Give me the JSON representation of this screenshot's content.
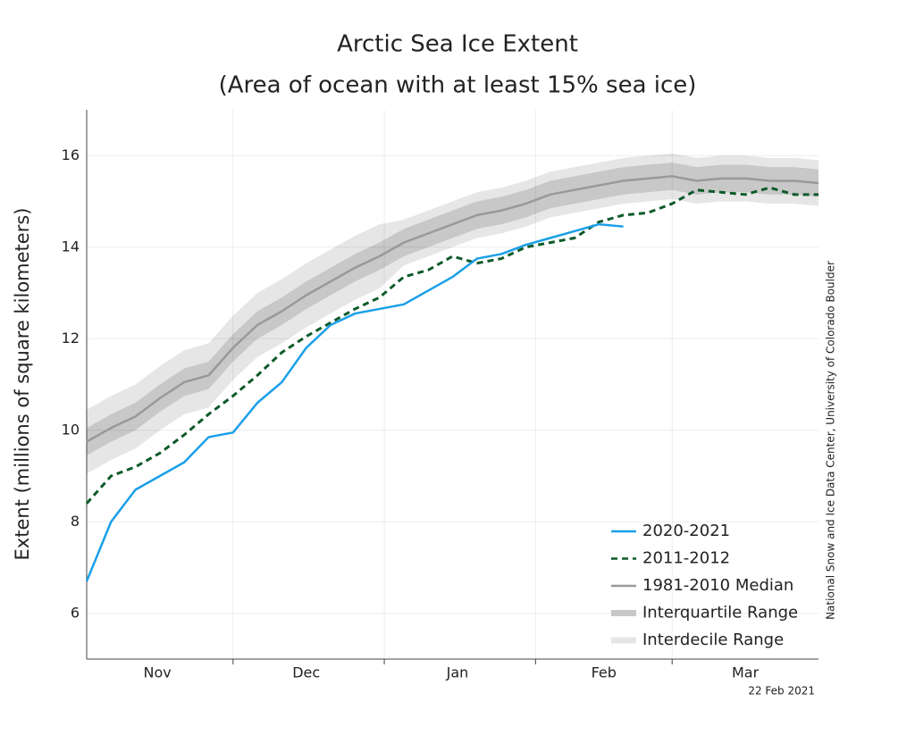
{
  "chart_data": {
    "type": "line",
    "title": [
      "Arctic Sea Ice Extent",
      "(Area of ocean with at least 15% sea ice)"
    ],
    "y_label": "Extent (millions of square kilometers)",
    "source": "National Snow and Ice Data Center, University of Colorado Boulder",
    "date": "22 Feb 2021",
    "x": [
      0,
      5,
      10,
      15,
      20,
      25,
      30,
      35,
      40,
      45,
      50,
      55,
      60,
      65,
      70,
      75,
      80,
      85,
      90,
      95,
      100,
      105,
      110,
      115,
      120,
      125,
      130,
      135,
      140,
      145,
      150
    ],
    "xlim": [
      0,
      150
    ],
    "xticks": [
      {
        "value": 14.5,
        "label": "Nov"
      },
      {
        "value": 45,
        "label": "Dec"
      },
      {
        "value": 76,
        "label": "Jan"
      },
      {
        "value": 106,
        "label": "Feb"
      },
      {
        "value": 135,
        "label": "Mar"
      }
    ],
    "month_boundaries": [
      30,
      61,
      92,
      120
    ],
    "ylim": [
      5,
      17
    ],
    "yticks": [
      6,
      8,
      10,
      12,
      14,
      16
    ],
    "grid": true,
    "legend": "lower right",
    "bands": [
      {
        "name": "Interdecile Range",
        "color": "#e6e6e6",
        "lower": [
          9.05,
          9.35,
          9.6,
          10.0,
          10.35,
          10.5,
          11.1,
          11.6,
          11.9,
          12.25,
          12.55,
          12.85,
          13.1,
          13.6,
          13.8,
          14.0,
          14.2,
          14.3,
          14.45,
          14.65,
          14.75,
          14.85,
          14.95,
          15.0,
          15.05,
          14.95,
          15.0,
          15.0,
          14.95,
          14.95,
          14.9
        ],
        "upper": [
          10.45,
          10.75,
          11.0,
          11.4,
          11.75,
          11.9,
          12.5,
          13.0,
          13.3,
          13.65,
          13.95,
          14.25,
          14.5,
          14.6,
          14.8,
          15.0,
          15.2,
          15.3,
          15.45,
          15.65,
          15.75,
          15.85,
          15.95,
          16.0,
          16.05,
          15.95,
          16.0,
          16.0,
          15.95,
          15.95,
          15.9
        ]
      },
      {
        "name": "Interquartile Range",
        "color": "#c8c8c8",
        "lower": [
          9.45,
          9.75,
          10.0,
          10.4,
          10.75,
          10.9,
          11.5,
          12.0,
          12.3,
          12.65,
          12.95,
          13.25,
          13.5,
          13.8,
          14.0,
          14.2,
          14.4,
          14.5,
          14.65,
          14.85,
          14.95,
          15.05,
          15.15,
          15.2,
          15.25,
          15.15,
          15.2,
          15.2,
          15.15,
          15.15,
          15.1
        ],
        "upper": [
          10.05,
          10.35,
          10.6,
          11.0,
          11.35,
          11.5,
          12.1,
          12.6,
          12.9,
          13.25,
          13.55,
          13.85,
          14.1,
          14.4,
          14.6,
          14.8,
          15.0,
          15.1,
          15.25,
          15.45,
          15.55,
          15.65,
          15.75,
          15.8,
          15.85,
          15.75,
          15.8,
          15.8,
          15.75,
          15.75,
          15.7
        ]
      }
    ],
    "series": [
      {
        "name": "2020-2021",
        "color": "#1a9fe8",
        "dash": false,
        "values": [
          6.7,
          8.0,
          8.7,
          9.0,
          9.3,
          9.85,
          9.95,
          10.6,
          11.05,
          11.8,
          12.3,
          12.55,
          12.65,
          12.75,
          13.05,
          13.35,
          13.75,
          13.85,
          14.05,
          14.2,
          14.35,
          14.5,
          14.45,
          null,
          null,
          null,
          null,
          null,
          null,
          null,
          null
        ]
      },
      {
        "name": "2011-2012",
        "color": "#0d5a2a",
        "dash": true,
        "values": [
          8.4,
          9.0,
          9.2,
          9.5,
          9.9,
          10.35,
          10.75,
          11.2,
          11.7,
          12.05,
          12.35,
          12.65,
          12.9,
          13.35,
          13.5,
          13.8,
          13.65,
          13.75,
          14.0,
          14.1,
          14.2,
          14.55,
          14.7,
          14.75,
          14.95,
          15.25,
          15.2,
          15.15,
          15.3,
          15.15,
          15.15
        ]
      },
      {
        "name": "1981-2010 Median",
        "color": "#999999",
        "dash": false,
        "values": [
          9.75,
          10.05,
          10.3,
          10.7,
          11.05,
          11.2,
          11.8,
          12.3,
          12.6,
          12.95,
          13.25,
          13.55,
          13.8,
          14.1,
          14.3,
          14.5,
          14.7,
          14.8,
          14.95,
          15.15,
          15.25,
          15.35,
          15.45,
          15.5,
          15.55,
          15.45,
          15.5,
          15.5,
          15.45,
          15.45,
          15.4
        ]
      }
    ]
  }
}
